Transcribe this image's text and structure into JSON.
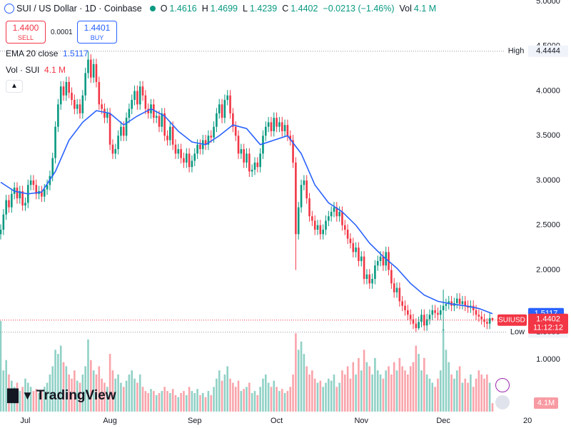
{
  "header": {
    "symbol": "SUI / US Dollar · 1D · Coinbase",
    "o_label": "O",
    "h_label": "H",
    "l_label": "L",
    "c_label": "C",
    "change": "−0.0213 (−1.46%)",
    "vol_label": "Vol",
    "vol_value": "4.1 M"
  },
  "trade": {
    "sell_price": "1.4400",
    "sell": "SELL",
    "spread": "0.0001",
    "buy_price": "1.4401",
    "buy": "BUY"
  },
  "legend": {
    "ema_label": "EMA 20 close",
    "vol_label": "Vol · SUI",
    "vol_value": "4.1 M"
  },
  "tags": {
    "high": "High",
    "low": "Low",
    "symbol": "SUIUSD",
    "countdown": "11:12:12",
    "volume": "4.1M",
    "year": "20"
  },
  "logo": "TradingView",
  "chart_data": {
    "type": "candlestick",
    "categories": [
      null,
      null,
      null,
      null,
      null,
      null,
      null,
      null,
      null,
      "Jul",
      null,
      null,
      null,
      null,
      null,
      null,
      null,
      null,
      null,
      null,
      null,
      null,
      null,
      null,
      null,
      null,
      null,
      null,
      null,
      null,
      null,
      null,
      null,
      null,
      null,
      null,
      null,
      null,
      null,
      null,
      "Aug",
      null,
      null,
      null,
      null,
      null,
      null,
      null,
      null,
      null,
      null,
      null,
      null,
      null,
      null,
      null,
      null,
      null,
      null,
      null,
      null,
      null,
      null,
      null,
      null,
      null,
      null,
      null,
      null,
      null,
      null,
      "Sep",
      null,
      null,
      null,
      null,
      null,
      null,
      null,
      null,
      null,
      null,
      null,
      null,
      null,
      null,
      null,
      null,
      null,
      null,
      null,
      null,
      null,
      null,
      null,
      null,
      null,
      null,
      null,
      null,
      null,
      "Oct",
      null,
      null,
      null,
      null,
      null,
      null,
      null,
      null,
      null,
      null,
      null,
      null,
      null,
      null,
      null,
      null,
      null,
      null,
      null,
      null,
      null,
      null,
      null,
      null,
      null,
      null,
      null,
      null,
      null,
      null,
      "Nov",
      null,
      null,
      null,
      null,
      null,
      null,
      null,
      null,
      null,
      null,
      null,
      null,
      null,
      null,
      null,
      null,
      null,
      null,
      null,
      null,
      null,
      null,
      null,
      null,
      null,
      null,
      null,
      null,
      null,
      "Dec",
      null,
      null,
      null,
      null,
      null,
      null,
      null,
      null,
      null,
      null,
      null,
      null,
      null,
      null,
      null,
      null,
      null,
      null
    ],
    "open": [
      2.4,
      2.45,
      2.62,
      2.78,
      2.7,
      2.85,
      2.92,
      2.8,
      2.88,
      2.72,
      2.75,
      2.95,
      3.0,
      2.95,
      2.85,
      2.88,
      2.82,
      2.9,
      2.95,
      3.05,
      3.25,
      3.6,
      3.85,
      4.05,
      3.95,
      4.1,
      3.98,
      3.9,
      3.8,
      3.85,
      3.75,
      3.95,
      4.2,
      4.35,
      4.15,
      4.3,
      4.1,
      3.85,
      3.8,
      3.7,
      3.75,
      3.4,
      3.3,
      3.35,
      3.5,
      3.6,
      3.5,
      3.7,
      3.8,
      3.9,
      4.0,
      3.85,
      4.05,
      3.95,
      3.8,
      3.75,
      3.85,
      3.7,
      3.72,
      3.6,
      3.75,
      3.5,
      3.45,
      3.6,
      3.4,
      3.3,
      3.35,
      3.25,
      3.2,
      3.3,
      3.15,
      3.22,
      3.3,
      3.4,
      3.35,
      3.45,
      3.4,
      3.5,
      3.48,
      3.6,
      3.75,
      3.85,
      3.7,
      3.9,
      3.95,
      3.75,
      3.6,
      3.5,
      3.3,
      3.35,
      3.2,
      3.3,
      3.1,
      3.12,
      3.2,
      3.15,
      3.3,
      3.5,
      3.6,
      3.65,
      3.55,
      3.7,
      3.6,
      3.65,
      3.55,
      3.62,
      3.5,
      3.45,
      3.2,
      2.4,
      2.7,
      2.95,
      3.0,
      2.8,
      2.6,
      2.55,
      2.45,
      2.5,
      2.4,
      2.45,
      2.55,
      2.6,
      2.65,
      2.7,
      2.6,
      2.65,
      2.5,
      2.45,
      2.35,
      2.3,
      2.2,
      2.25,
      2.1,
      2.15,
      1.9,
      1.95,
      1.85,
      1.9,
      2.05,
      2.1,
      2.15,
      2.05,
      2.2,
      2.0,
      1.85,
      1.75,
      1.8,
      1.65,
      1.6,
      1.55,
      1.5,
      1.45,
      1.4,
      1.35,
      1.42,
      1.5,
      1.38,
      1.45,
      1.5,
      1.55,
      1.52,
      1.5,
      1.55,
      1.6,
      1.62,
      1.65,
      1.6,
      1.63,
      1.68,
      1.62,
      1.65,
      1.6,
      1.58,
      1.6,
      1.55,
      1.5,
      1.48,
      1.45,
      1.42,
      1.4,
      1.4616
    ],
    "high": [
      2.51,
      2.68,
      2.84,
      2.84,
      2.91,
      2.98,
      2.98,
      2.94,
      2.94,
      2.81,
      3.01,
      3.06,
      3.06,
      3.01,
      2.94,
      2.94,
      2.96,
      3.01,
      3.11,
      3.31,
      3.66,
      3.91,
      4.11,
      4.11,
      4.16,
      4.16,
      4.04,
      3.96,
      3.91,
      3.91,
      4.01,
      4.26,
      4.4444,
      4.41,
      4.36,
      4.36,
      4.16,
      3.91,
      3.86,
      3.81,
      3.81,
      3.46,
      3.41,
      3.56,
      3.66,
      3.66,
      3.76,
      3.86,
      3.96,
      4.06,
      4.06,
      4.11,
      4.11,
      4.01,
      3.86,
      3.91,
      3.91,
      3.78,
      3.78,
      3.81,
      3.81,
      3.56,
      3.66,
      3.66,
      3.46,
      3.41,
      3.41,
      3.31,
      3.36,
      3.36,
      3.28,
      3.36,
      3.46,
      3.46,
      3.51,
      3.51,
      3.56,
      3.56,
      3.66,
      3.81,
      3.91,
      3.91,
      3.96,
      4.01,
      4.01,
      3.81,
      3.66,
      3.56,
      3.41,
      3.41,
      3.36,
      3.36,
      3.18,
      3.26,
      3.26,
      3.36,
      3.56,
      3.66,
      3.71,
      3.71,
      3.76,
      3.76,
      3.71,
      3.71,
      3.68,
      3.68,
      3.56,
      3.51,
      3.26,
      2.76,
      3.01,
      3.06,
      3.06,
      2.86,
      2.66,
      2.61,
      2.56,
      2.56,
      2.51,
      2.61,
      2.66,
      2.71,
      2.76,
      2.76,
      2.71,
      2.71,
      2.56,
      2.51,
      2.41,
      2.36,
      2.31,
      2.31,
      2.21,
      2.21,
      2.01,
      2.01,
      1.96,
      2.11,
      2.16,
      2.21,
      2.21,
      2.26,
      2.26,
      2.06,
      1.91,
      1.86,
      1.86,
      1.71,
      1.66,
      1.61,
      1.56,
      1.51,
      1.46,
      1.48,
      1.56,
      1.56,
      1.51,
      1.56,
      1.61,
      1.61,
      1.58,
      1.61,
      1.78,
      1.68,
      1.71,
      1.71,
      1.69,
      1.74,
      1.74,
      1.71,
      1.71,
      1.66,
      1.66,
      1.66,
      1.61,
      1.56,
      1.54,
      1.51,
      1.46,
      1.52,
      1.4699
    ],
    "low": [
      2.34,
      2.39,
      2.56,
      2.64,
      2.64,
      2.79,
      2.74,
      2.74,
      2.66,
      2.66,
      2.69,
      2.89,
      2.89,
      2.79,
      2.79,
      2.76,
      2.76,
      2.84,
      2.89,
      2.99,
      3.19,
      3.54,
      3.79,
      3.89,
      3.89,
      3.92,
      3.84,
      3.74,
      3.74,
      3.69,
      3.69,
      3.89,
      4.14,
      4.09,
      4.09,
      4.04,
      3.79,
      3.74,
      3.64,
      3.64,
      3.34,
      3.24,
      3.24,
      3.29,
      3.44,
      3.44,
      3.44,
      3.64,
      3.74,
      3.84,
      3.79,
      3.79,
      3.89,
      3.74,
      3.69,
      3.69,
      3.64,
      3.64,
      3.54,
      3.54,
      3.44,
      3.39,
      3.39,
      3.34,
      3.24,
      3.24,
      3.19,
      3.14,
      3.14,
      3.09,
      3.09,
      3.16,
      3.24,
      3.29,
      3.29,
      3.34,
      3.34,
      3.42,
      3.42,
      3.54,
      3.69,
      3.64,
      3.64,
      3.84,
      3.69,
      3.54,
      3.44,
      3.24,
      3.24,
      3.14,
      3.14,
      3.04,
      3.04,
      3.06,
      3.09,
      3.09,
      3.24,
      3.44,
      3.54,
      3.49,
      3.49,
      3.54,
      3.54,
      3.49,
      3.49,
      3.44,
      3.39,
      3.14,
      2.0,
      2.34,
      2.64,
      2.89,
      2.74,
      2.54,
      2.49,
      2.39,
      2.39,
      2.34,
      2.34,
      2.39,
      2.49,
      2.54,
      2.59,
      2.54,
      2.54,
      2.44,
      2.39,
      2.29,
      2.24,
      2.14,
      2.14,
      2.04,
      2.04,
      1.84,
      1.84,
      1.79,
      1.79,
      1.84,
      1.99,
      2.04,
      1.99,
      1.99,
      1.94,
      1.79,
      1.69,
      1.69,
      1.59,
      1.54,
      1.49,
      1.44,
      1.39,
      1.34,
      1.3058,
      1.33,
      1.36,
      1.32,
      1.32,
      1.39,
      1.44,
      1.46,
      1.44,
      1.44,
      1.32,
      1.54,
      1.56,
      1.54,
      1.54,
      1.57,
      1.56,
      1.56,
      1.54,
      1.52,
      1.52,
      1.49,
      1.44,
      1.42,
      1.39,
      1.36,
      1.34,
      1.34,
      1.4239
    ],
    "close": [
      2.45,
      2.62,
      2.78,
      2.7,
      2.85,
      2.92,
      2.8,
      2.88,
      2.72,
      2.75,
      2.95,
      3.0,
      2.95,
      2.85,
      2.88,
      2.82,
      2.9,
      2.95,
      3.05,
      3.25,
      3.6,
      3.85,
      4.05,
      3.95,
      4.1,
      3.98,
      3.9,
      3.8,
      3.85,
      3.75,
      3.95,
      4.2,
      4.35,
      4.15,
      4.3,
      4.1,
      3.85,
      3.8,
      3.7,
      3.75,
      3.4,
      3.3,
      3.35,
      3.5,
      3.6,
      3.5,
      3.7,
      3.8,
      3.9,
      4.0,
      3.85,
      4.05,
      3.95,
      3.8,
      3.75,
      3.85,
      3.7,
      3.72,
      3.6,
      3.75,
      3.5,
      3.45,
      3.6,
      3.4,
      3.3,
      3.35,
      3.25,
      3.2,
      3.3,
      3.15,
      3.22,
      3.3,
      3.4,
      3.35,
      3.45,
      3.4,
      3.5,
      3.48,
      3.6,
      3.75,
      3.85,
      3.7,
      3.9,
      3.95,
      3.75,
      3.6,
      3.5,
      3.3,
      3.35,
      3.2,
      3.3,
      3.1,
      3.12,
      3.2,
      3.15,
      3.3,
      3.5,
      3.6,
      3.65,
      3.55,
      3.7,
      3.6,
      3.65,
      3.55,
      3.62,
      3.5,
      3.45,
      3.2,
      2.4,
      2.7,
      2.95,
      3.0,
      2.8,
      2.6,
      2.55,
      2.45,
      2.5,
      2.4,
      2.45,
      2.55,
      2.6,
      2.65,
      2.7,
      2.6,
      2.65,
      2.5,
      2.45,
      2.35,
      2.3,
      2.2,
      2.25,
      2.1,
      2.15,
      1.9,
      1.95,
      1.85,
      1.9,
      2.05,
      2.1,
      2.15,
      2.05,
      2.2,
      2.0,
      1.85,
      1.75,
      1.8,
      1.65,
      1.6,
      1.55,
      1.5,
      1.45,
      1.4,
      1.35,
      1.42,
      1.5,
      1.38,
      1.45,
      1.5,
      1.55,
      1.52,
      1.5,
      1.55,
      1.6,
      1.62,
      1.65,
      1.6,
      1.63,
      1.68,
      1.62,
      1.65,
      1.6,
      1.58,
      1.6,
      1.55,
      1.5,
      1.48,
      1.45,
      1.42,
      1.4,
      1.4616,
      1.4402
    ],
    "volume": [
      44,
      20,
      25,
      18,
      15,
      12,
      14,
      10,
      12,
      16,
      14,
      12,
      10,
      11,
      9,
      10,
      12,
      14,
      18,
      22,
      30,
      28,
      32,
      24,
      22,
      18,
      16,
      20,
      15,
      14,
      18,
      22,
      35,
      25,
      20,
      18,
      22,
      16,
      14,
      12,
      28,
      20,
      16,
      18,
      14,
      12,
      15,
      18,
      20,
      16,
      14,
      18,
      12,
      10,
      9,
      11,
      10,
      8,
      9,
      10,
      12,
      10,
      9,
      11,
      8,
      7,
      9,
      10,
      8,
      12,
      10,
      9,
      11,
      8,
      9,
      7,
      10,
      8,
      12,
      16,
      20,
      15,
      18,
      22,
      16,
      14,
      12,
      15,
      10,
      11,
      12,
      14,
      9,
      10,
      8,
      12,
      16,
      18,
      14,
      12,
      15,
      12,
      10,
      11,
      9,
      10,
      12,
      18,
      38,
      30,
      34,
      28,
      22,
      18,
      20,
      16,
      14,
      15,
      12,
      14,
      16,
      15,
      18,
      12,
      14,
      20,
      18,
      22,
      16,
      24,
      18,
      26,
      20,
      30,
      24,
      22,
      18,
      26,
      20,
      18,
      16,
      20,
      22,
      18,
      24,
      20,
      26,
      22,
      20,
      18,
      22,
      24,
      32,
      28,
      20,
      26,
      18,
      16,
      14,
      12,
      16,
      20,
      40,
      30,
      24,
      18,
      16,
      20,
      22,
      14,
      16,
      14,
      18,
      12,
      16,
      20,
      18,
      16,
      18,
      14,
      4.1
    ],
    "up_color": "#089981",
    "down_color": "#f23645",
    "ylim": [
      0.418,
      5.016
    ],
    "yticks": [
      {
        "value": 1.0,
        "label": "1.0000"
      },
      {
        "value": 1.5,
        "label": "1.5000"
      },
      {
        "value": 2.0,
        "label": "2.0000"
      },
      {
        "value": 2.5,
        "label": "2.5000"
      },
      {
        "value": 3.0,
        "label": "3.0000"
      },
      {
        "value": 3.5,
        "label": "3.5000"
      },
      {
        "value": 4.0,
        "label": "4.0000"
      },
      {
        "value": 4.5,
        "label": "4.5000"
      },
      {
        "value": 5.0,
        "label": "5.0000"
      }
    ],
    "volume_ylim": [
      0,
      45
    ],
    "ema": {
      "name": "EMA 20 close",
      "color": "#2962ff",
      "x": [
        0,
        5,
        10,
        15,
        20,
        25,
        30,
        35,
        40,
        45,
        50,
        55,
        60,
        65,
        70,
        75,
        80,
        85,
        90,
        95,
        100,
        105,
        110,
        115,
        120,
        125,
        130,
        135,
        140,
        145,
        150,
        155,
        160,
        165,
        170,
        175,
        180
      ],
      "values": [
        2.98,
        2.88,
        2.85,
        2.87,
        3.1,
        3.45,
        3.65,
        3.78,
        3.75,
        3.62,
        3.72,
        3.8,
        3.72,
        3.55,
        3.43,
        3.4,
        3.5,
        3.62,
        3.58,
        3.4,
        3.45,
        3.5,
        3.3,
        2.95,
        2.75,
        2.65,
        2.5,
        2.3,
        2.15,
        2.02,
        1.85,
        1.72,
        1.65,
        1.62,
        1.6,
        1.57,
        1.5117
      ]
    },
    "grid": false
  }
}
